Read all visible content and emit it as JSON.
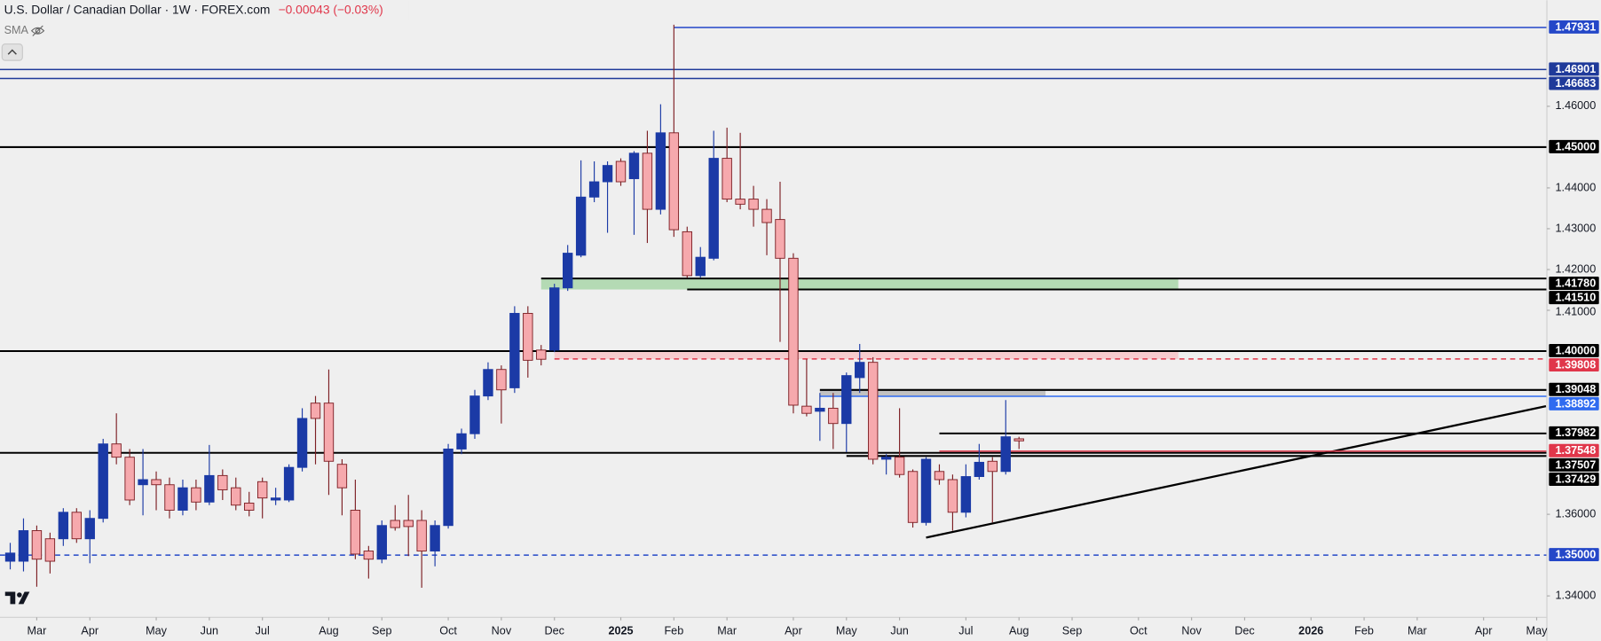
{
  "header": {
    "title": "U.S. Dollar / Canadian Dollar · 1W · FOREX.com",
    "change": "−0.00043 (−0.03%)",
    "indicator": "SMA"
  },
  "chart_data": {
    "type": "candlestick",
    "x": [
      -2,
      -1,
      0,
      1,
      2,
      3,
      4,
      5,
      6,
      7,
      8,
      9,
      10,
      11,
      12,
      13,
      14,
      15,
      16,
      17,
      18,
      19,
      20,
      21,
      22,
      23,
      24,
      25,
      26,
      27,
      28,
      29,
      30,
      31,
      32,
      33,
      34,
      35,
      36,
      37,
      38,
      39,
      40,
      41,
      42,
      43,
      44,
      45,
      46,
      47,
      48,
      49,
      50,
      51,
      52,
      53,
      54,
      55,
      56,
      57,
      58,
      59,
      60,
      61,
      62,
      63,
      64,
      65,
      66,
      67,
      68,
      69,
      70,
      71,
      72,
      73,
      74
    ],
    "open": [
      1.3485,
      1.3485,
      1.356,
      1.354,
      1.354,
      1.3605,
      1.354,
      1.359,
      1.37725,
      1.374,
      1.36725,
      1.3685,
      1.36725,
      1.361,
      1.3665,
      1.363,
      1.3695,
      1.3665,
      1.36275,
      1.368,
      1.3635,
      1.3635,
      1.3715,
      1.38725,
      1.38725,
      1.37225,
      1.361,
      1.351,
      1.349,
      1.3585,
      1.3585,
      1.3585,
      1.351,
      1.35725,
      1.376,
      1.37975,
      1.389,
      1.3955,
      1.391,
      1.40925,
      1.40025,
      1.40025,
      1.4155,
      1.4235,
      1.43775,
      1.4415,
      1.4465,
      1.44225,
      1.4485,
      1.43475,
      1.4535,
      1.42925,
      1.4185,
      1.42275,
      1.44725,
      1.43725,
      1.43725,
      1.43475,
      1.43225,
      1.42275,
      1.3865,
      1.38525,
      1.386,
      1.38225,
      1.3935,
      1.39725,
      1.3735,
      1.374,
      1.3705,
      1.358,
      1.3705,
      1.3685,
      1.3605,
      1.36925,
      1.373,
      1.3705,
      1.3785
    ],
    "high": [
      1.353,
      1.359,
      1.35725,
      1.3555,
      1.3615,
      1.3615,
      1.361,
      1.3785,
      1.38475,
      1.376,
      1.376,
      1.3705,
      1.369,
      1.3685,
      1.3685,
      1.377,
      1.371,
      1.369,
      1.3655,
      1.369,
      1.3665,
      1.37225,
      1.386,
      1.389,
      1.3955,
      1.3735,
      1.3685,
      1.35225,
      1.3585,
      1.36225,
      1.36475,
      1.361,
      1.3585,
      1.37725,
      1.381,
      1.3905,
      1.39725,
      1.3965,
      1.411,
      1.411,
      1.4015,
      1.4165,
      1.426,
      1.44675,
      1.4465,
      1.4465,
      1.44725,
      1.449,
      1.454,
      1.4605,
      1.48,
      1.4305,
      1.4255,
      1.454,
      1.45475,
      1.4535,
      1.4405,
      1.43725,
      1.4415,
      1.424,
      1.398,
      1.38975,
      1.38975,
      1.39475,
      1.40175,
      1.3985,
      1.37475,
      1.386,
      1.371,
      1.374,
      1.37225,
      1.36975,
      1.37225,
      1.37725,
      1.374,
      1.388,
      1.379
    ],
    "low": [
      1.3465,
      1.346,
      1.34225,
      1.3455,
      1.35225,
      1.353,
      1.348,
      1.358,
      1.37225,
      1.36225,
      1.35975,
      1.361,
      1.359,
      1.35975,
      1.361,
      1.36225,
      1.3635,
      1.361,
      1.3595,
      1.359,
      1.36225,
      1.363,
      1.3705,
      1.37225,
      1.36475,
      1.35975,
      1.349,
      1.34425,
      1.348,
      1.356,
      1.34975,
      1.342,
      1.34725,
      1.3565,
      1.37475,
      1.3785,
      1.388,
      1.38225,
      1.38975,
      1.3935,
      1.3965,
      1.39975,
      1.41475,
      1.423,
      1.4365,
      1.429,
      1.4405,
      1.4285,
      1.4265,
      1.4335,
      1.428,
      1.418,
      1.418,
      1.42225,
      1.4365,
      1.43475,
      1.4305,
      1.4235,
      1.40225,
      1.38475,
      1.384,
      1.378,
      1.376,
      1.37525,
      1.38975,
      1.37225,
      1.36975,
      1.369,
      1.35675,
      1.35725,
      1.36725,
      1.356,
      1.35925,
      1.3685,
      1.358,
      1.36975,
      1.376
    ],
    "close": [
      1.3505,
      1.356,
      1.349,
      1.3485,
      1.3605,
      1.354,
      1.359,
      1.37725,
      1.374,
      1.3635,
      1.3685,
      1.36725,
      1.361,
      1.3665,
      1.363,
      1.3695,
      1.366,
      1.36225,
      1.361,
      1.364,
      1.364,
      1.3715,
      1.3835,
      1.3835,
      1.373,
      1.3665,
      1.35025,
      1.349,
      1.35725,
      1.35675,
      1.357,
      1.351,
      1.35725,
      1.376,
      1.37975,
      1.389,
      1.3955,
      1.3905,
      1.40925,
      1.39775,
      1.398,
      1.4155,
      1.424,
      1.43775,
      1.4415,
      1.4455,
      1.4415,
      1.4485,
      1.43475,
      1.4535,
      1.42975,
      1.4185,
      1.423,
      1.44725,
      1.43725,
      1.436,
      1.43475,
      1.4315,
      1.42275,
      1.38675,
      1.38475,
      1.386,
      1.38225,
      1.394,
      1.39725,
      1.3735,
      1.374,
      1.36975,
      1.358,
      1.3735,
      1.3685,
      1.3605,
      1.36925,
      1.37275,
      1.3705,
      1.379,
      1.378
    ],
    "up_color": "#1b3aa6",
    "down_color": "#f6a9ad",
    "down_edge": "#7d1f24",
    "xlim": [
      -2.77,
      113.77
    ],
    "ylim": [
      1.33475,
      1.486
    ],
    "xticks": [
      {
        "value": 0,
        "label": "Mar"
      },
      {
        "value": 4,
        "label": "Apr"
      },
      {
        "value": 9,
        "label": "May"
      },
      {
        "value": 13,
        "label": "Jun"
      },
      {
        "value": 17,
        "label": "Jul"
      },
      {
        "value": 22,
        "label": "Aug"
      },
      {
        "value": 26,
        "label": "Sep"
      },
      {
        "value": 31,
        "label": "Oct"
      },
      {
        "value": 35,
        "label": "Nov"
      },
      {
        "value": 39,
        "label": "Dec"
      },
      {
        "value": 44,
        "label": "2025",
        "bold": true
      },
      {
        "value": 48,
        "label": "Feb"
      },
      {
        "value": 52,
        "label": "Mar"
      },
      {
        "value": 57,
        "label": "Apr"
      },
      {
        "value": 61,
        "label": "May"
      },
      {
        "value": 65,
        "label": "Jun"
      },
      {
        "value": 70,
        "label": "Jul"
      },
      {
        "value": 74,
        "label": "Aug"
      },
      {
        "value": 78,
        "label": "Sep"
      },
      {
        "value": 83,
        "label": "Oct"
      },
      {
        "value": 87,
        "label": "Nov"
      },
      {
        "value": 91,
        "label": "Dec"
      },
      {
        "value": 96,
        "label": "2026",
        "bold": true
      },
      {
        "value": 100,
        "label": "Feb"
      },
      {
        "value": 104,
        "label": "Mar"
      },
      {
        "value": 109,
        "label": "Apr"
      },
      {
        "value": 113,
        "label": "May"
      }
    ],
    "yticks": [
      {
        "value": 1.34,
        "label": "1.34000"
      },
      {
        "value": 1.36,
        "label": "1.36000"
      },
      {
        "value": 1.41,
        "label": "1.41000"
      },
      {
        "value": 1.42,
        "label": "1.42000"
      },
      {
        "value": 1.43,
        "label": "1.43000"
      },
      {
        "value": 1.44,
        "label": "1.44000"
      },
      {
        "value": 1.46,
        "label": "1.46000"
      }
    ],
    "levels": [
      {
        "value": 1.47931,
        "label": "1.47931",
        "color": "#2447c8",
        "x_start": 48
      },
      {
        "value": 1.46901,
        "label": "1.46901",
        "color": "#1f3a9a"
      },
      {
        "value": 1.46683,
        "label": "1.46683",
        "color": "#1f3a9a"
      },
      {
        "value": 1.45,
        "label": "1.45000",
        "color": "#000000"
      },
      {
        "value": 1.4178,
        "label": "1.41780",
        "color": "#000000",
        "x_start": 38
      },
      {
        "value": 1.4151,
        "label": "1.41510",
        "color": "#000000",
        "x_start": 49
      },
      {
        "value": 1.4,
        "label": "1.40000",
        "color": "#000000"
      },
      {
        "value": 1.39808,
        "label": "1.39808",
        "color": "#e0364a",
        "x_start": 39,
        "dashed": true
      },
      {
        "value": 1.39048,
        "label": "1.39048",
        "color": "#000000",
        "x_start": 59
      },
      {
        "value": 1.38892,
        "label": "1.38892",
        "color": "#2f6bf0",
        "x_start": 59
      },
      {
        "value": 1.37982,
        "label": "1.37982",
        "color": "#000000",
        "x_start": 68
      },
      {
        "value": 1.37548,
        "label": "1.37548",
        "color": "#e0364a",
        "x_start": 68
      },
      {
        "value": 1.37507,
        "label": "1.37507",
        "color": "#000000"
      },
      {
        "value": 1.37429,
        "label": "1.37429",
        "color": "#000000",
        "x_start": 61
      },
      {
        "value": 1.35,
        "label": "1.35000",
        "color": "#2447c8",
        "dashed": true
      }
    ],
    "zones": [
      {
        "from": 1.4151,
        "to": 1.4178,
        "x_start": 38,
        "x_end": 86,
        "color": "#a9d6a9"
      },
      {
        "from": 1.39808,
        "to": 1.4,
        "x_start": 39,
        "x_end": 86,
        "color": "#f7c4c8"
      },
      {
        "from": 1.38892,
        "to": 1.39048,
        "x_start": 59,
        "x_end": 76,
        "color": "#b9b9b9"
      }
    ],
    "trendlines": [
      {
        "points": [
          [
            67,
            1.3543
          ],
          [
            113.7,
            1.3865
          ]
        ],
        "color": "#000000"
      }
    ]
  }
}
